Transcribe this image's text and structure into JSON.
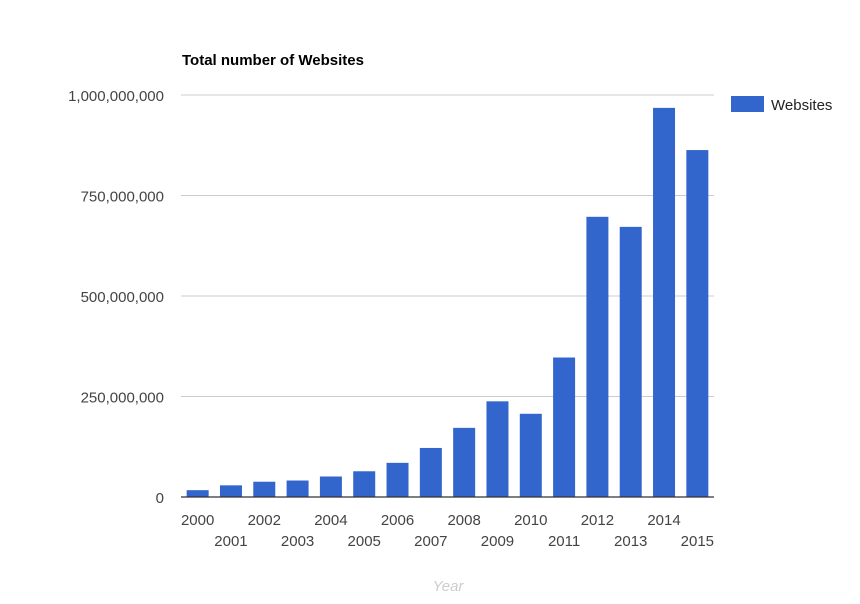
{
  "chart_data": {
    "type": "bar",
    "title": "Total number of Websites",
    "xlabel": "Year",
    "ylabel": "",
    "categories": [
      "2000",
      "2001",
      "2002",
      "2003",
      "2004",
      "2005",
      "2006",
      "2007",
      "2008",
      "2009",
      "2010",
      "2011",
      "2012",
      "2013",
      "2014",
      "2015"
    ],
    "series": [
      {
        "name": "Websites",
        "color": "#3366cc",
        "values": [
          17000000,
          29000000,
          38000000,
          41000000,
          51000000,
          64000000,
          85000000,
          122000000,
          172000000,
          238000000,
          207000000,
          347000000,
          697000000,
          672000000,
          968000000,
          863000000
        ]
      }
    ],
    "ylim": [
      0,
      1000000000
    ],
    "yticks": [
      0,
      250000000,
      500000000,
      750000000,
      1000000000
    ],
    "ytick_labels": [
      "0",
      "250,000,000",
      "500,000,000",
      "750,000,000",
      "1,000,000,000"
    ],
    "grid": true,
    "legend_position": "right"
  }
}
